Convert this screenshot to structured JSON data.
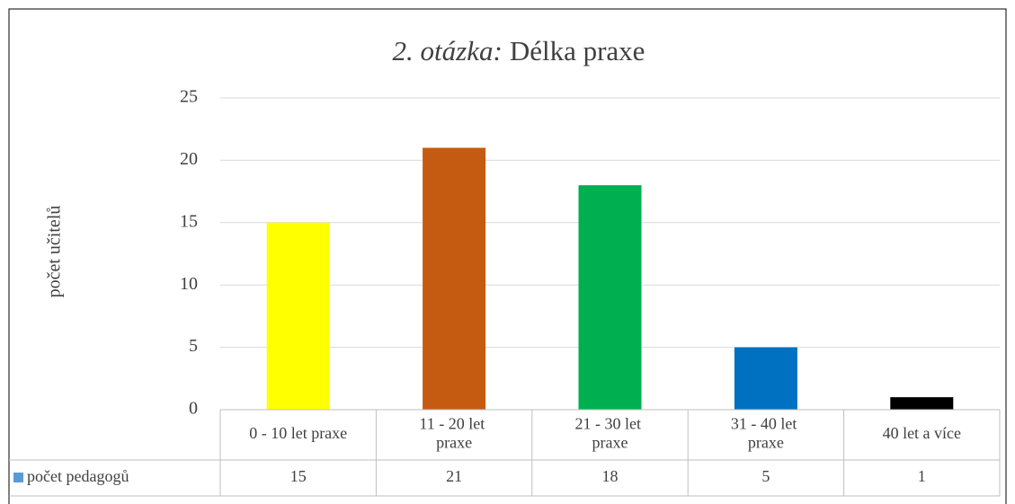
{
  "chart_data": {
    "type": "bar",
    "title_prefix": "2. otázka:",
    "title": "Délka praxe",
    "y_label": "počet učitelů",
    "categories": [
      "0 - 10 let praxe",
      "11 - 20 let praxe",
      "21 - 30 let praxe",
      "31 - 40 let praxe",
      "40 let a více"
    ],
    "series": [
      {
        "name": "počet pedagogů",
        "color": "#5b9bd5",
        "values": [
          15,
          21,
          18,
          5,
          1
        ]
      }
    ],
    "bar_colors": [
      "#ffff00",
      "#c55a11",
      "#00b050",
      "#0070c0",
      "#000000"
    ],
    "ylim": [
      0,
      25
    ],
    "yticks": [
      0,
      5,
      10,
      15,
      20,
      25
    ],
    "grid": true,
    "data_table": true
  }
}
